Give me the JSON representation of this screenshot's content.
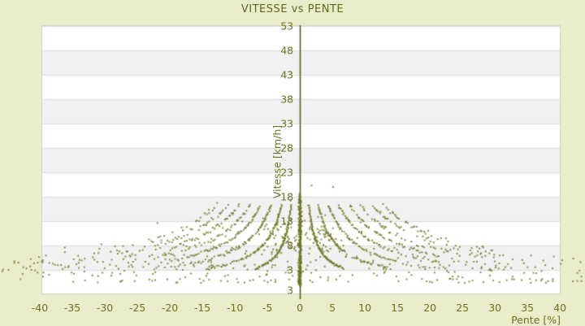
{
  "chart_data": {
    "type": "scatter",
    "title": "VITESSE vs PENTE",
    "xlabel": "Pente [%]",
    "ylabel": "Vitesse [km/h]",
    "x_ticks": [
      -40,
      -35,
      -30,
      -25,
      -20,
      -15,
      -10,
      -5,
      0,
      5,
      10,
      15,
      20,
      25,
      30,
      35,
      40
    ],
    "y_ticks": [
      53,
      48,
      43,
      38,
      33,
      28,
      23,
      18,
      13,
      8,
      3
    ],
    "y_axis_end_label": "3",
    "xlim": [
      -39.75,
      40.1
    ],
    "ylim": [
      -2,
      53.17
    ],
    "legend": false,
    "grid": "horizontal-lines-with-alternating-bands",
    "gray_bands": [
      [
        3,
        8
      ],
      [
        13,
        18
      ],
      [
        23,
        28
      ],
      [
        33,
        38
      ],
      [
        43,
        48
      ]
    ],
    "colors": {
      "page_background": "#e9edcb",
      "plot_background": "#ffffff",
      "band_fill": "#f1f1f1",
      "grid_line": "#dcdcdc",
      "plot_border": "#cfcfcf",
      "points": "#6f7522",
      "axis_line": "#4e5a10",
      "text": "#6b731f",
      "title_text": "#5e681a"
    },
    "description": "GPS track speed vs slope scatter: hyperbolic curve families v = K/|pente| (quantized elevation steps), dense vertical cluster at pente=0 spanning v 0-17.5 km/h, sparse floor of near-zero speeds across pente -46..44 %, points overflow the plot frame on both sides.",
    "point_generation": {
      "seed": 42,
      "curve_K": [
        22,
        46,
        72,
        98,
        125,
        152,
        180,
        208
      ],
      "curve_v_max": 16.3,
      "curve_v_min": 3.2,
      "curve_step": 1.015,
      "curve_skip_base": 0.05,
      "curve_skip_slope": 0.022,
      "curve_skip_max": 0.75,
      "center_bar": {
        "count": 260,
        "p_sigma": 0.12,
        "v_min": -0.3,
        "v_max": 17.5
      },
      "center_top_dots": {
        "count": 9,
        "v_min": 17.5,
        "v_max": 18.7
      },
      "clusters": {
        "count_per_side": 55,
        "p_mean": 2.8,
        "p_sigma": 1.4,
        "p_min": 0.3,
        "p_max": 7.5,
        "v_mean": 9.8,
        "v_sigma": 2.0,
        "v_min": 4,
        "v_max": 15
      },
      "halo": {
        "count": 80,
        "p_spread": 45,
        "v_base": 3.5,
        "v_range": 11.2,
        "v_max": 15.5
      },
      "low_scatter": {
        "count": 95,
        "p_spread": 46,
        "v_min": 1.4,
        "v_range": 2.2
      },
      "bottom_row": {
        "count": 72,
        "p_min": -46,
        "p_max": 44,
        "v_min": 0.3,
        "v_range": 0.9
      },
      "outliers": [
        [
          1.8,
          20.3
        ],
        [
          5.1,
          20.0
        ],
        [
          -1.4,
          17.2
        ]
      ]
    }
  }
}
